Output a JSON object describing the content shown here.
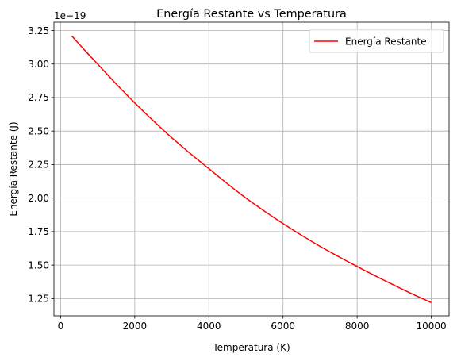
{
  "chart_data": {
    "type": "line",
    "title": "Energía Restante vs Temperatura",
    "xlabel": "Temperatura (K)",
    "ylabel": "Energía Restante (J)",
    "y_offset_text": "1e−19",
    "xlim": [
      -180,
      10480
    ],
    "ylim": [
      1.122,
      3.312
    ],
    "x_ticks": [
      0,
      2000,
      4000,
      6000,
      8000,
      10000
    ],
    "x_tick_labels": [
      "0",
      "2000",
      "4000",
      "6000",
      "8000",
      "10000"
    ],
    "y_ticks": [
      1.25,
      1.5,
      1.75,
      2.0,
      2.25,
      2.5,
      2.75,
      3.0,
      3.25
    ],
    "y_tick_labels": [
      "1.25",
      "1.50",
      "1.75",
      "2.00",
      "2.25",
      "2.50",
      "2.75",
      "3.00",
      "3.25"
    ],
    "grid": true,
    "legend_position": "top-right",
    "series": [
      {
        "name": "Energía Restante",
        "color": "#ff0000",
        "x": [
          300,
          1000,
          2000,
          3000,
          4000,
          5000,
          6000,
          7000,
          8000,
          9000,
          10000
        ],
        "y": [
          3.21,
          3.0,
          2.71,
          2.45,
          2.22,
          2.0,
          1.81,
          1.64,
          1.49,
          1.35,
          1.22
        ]
      }
    ]
  }
}
